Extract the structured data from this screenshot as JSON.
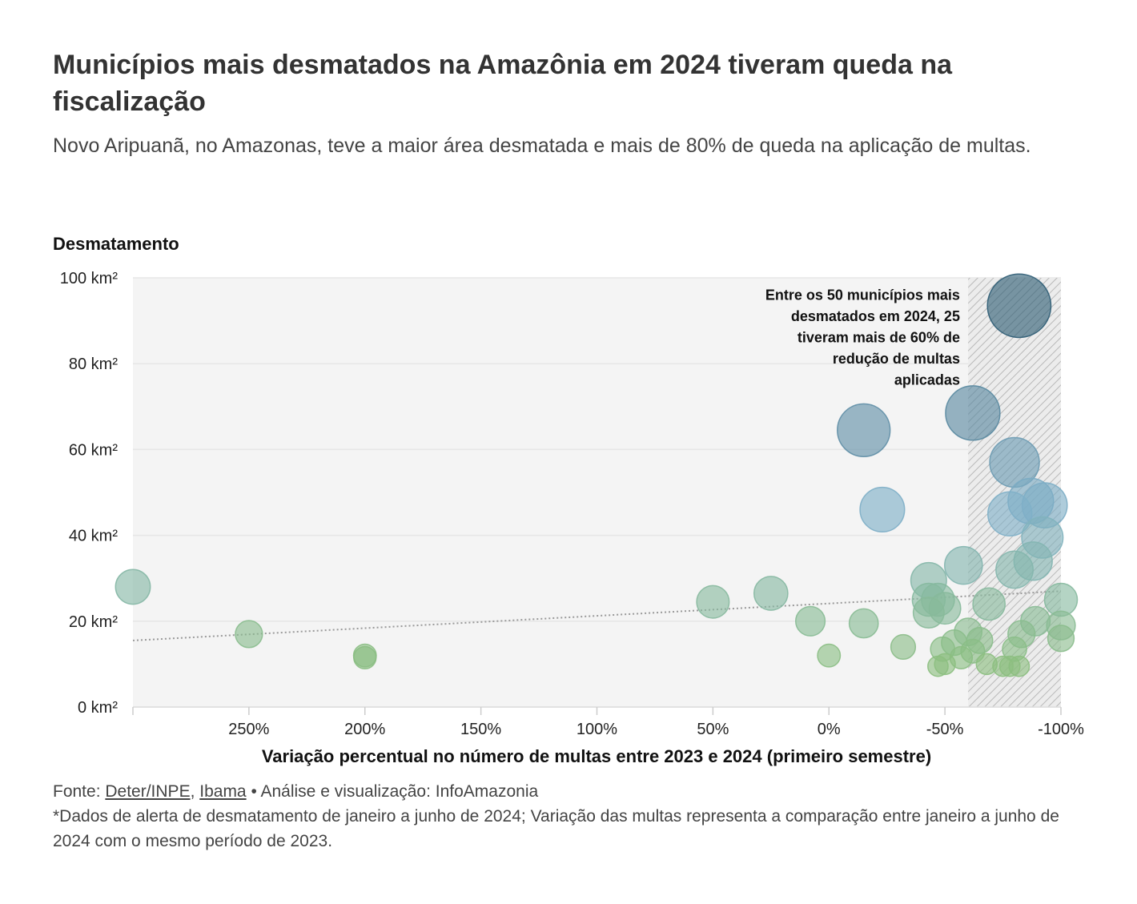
{
  "header": {
    "title": "Municípios mais desmatados na Amazônia em 2024 tiveram queda na fiscalização",
    "subtitle": "Novo Aripuanã, no Amazonas, teve a maior área desmatada e mais de 80% de queda na aplicação de multas."
  },
  "footer": {
    "source_prefix": "Fonte: ",
    "source_1": "Deter/INPE",
    "source_sep": ", ",
    "source_2": "Ibama",
    "credit": " • Análise e visualização: InfoAmazonia",
    "note": "*Dados de alerta de desmatamento de janeiro a junho de 2024; Variação das multas representa a comparação entre janeiro a junho de 2024 com o mesmo período de 2023."
  },
  "chart_data": {
    "type": "scatter",
    "y_axis_title": "Desmatamento",
    "xlabel": "Variação percentual no número de multas entre 2023 e 2024 (primeiro semestre)",
    "x_reversed": true,
    "xlim": [
      300,
      -100
    ],
    "ylim": [
      0,
      100
    ],
    "x_ticks": [
      {
        "value": 250,
        "label": "250%"
      },
      {
        "value": 200,
        "label": "200%"
      },
      {
        "value": 150,
        "label": "150%"
      },
      {
        "value": 100,
        "label": "100%"
      },
      {
        "value": 50,
        "label": "50%"
      },
      {
        "value": 0,
        "label": "0%"
      },
      {
        "value": -50,
        "label": "-50%"
      },
      {
        "value": -100,
        "label": "-100%"
      }
    ],
    "y_ticks": [
      {
        "value": 0,
        "label": "0 km²"
      },
      {
        "value": 20,
        "label": "20 km²"
      },
      {
        "value": 40,
        "label": "40 km²"
      },
      {
        "value": 60,
        "label": "60 km²"
      },
      {
        "value": 80,
        "label": "80 km²"
      },
      {
        "value": 100,
        "label": "100 km²"
      }
    ],
    "highlight_band": {
      "x_from": -60,
      "x_to": -100,
      "pattern": "diagonal-hatch"
    },
    "trend_line": {
      "x": [
        300,
        -100
      ],
      "y": [
        15.5,
        27
      ]
    },
    "annotation": {
      "lines": [
        "Entre os 50 municípios mais",
        "desmatados em 2024, 25",
        "tiveram mais de 60% de",
        "redução de multas",
        "aplicadas"
      ],
      "anchor": {
        "x": -56.5,
        "y": 96
      }
    },
    "colors": {
      "low": "#8cbf80",
      "mid": "#7fb0c8",
      "high": "#2d5a72",
      "band": "#c9c9c9",
      "plot_bg": "#f4f4f4",
      "grid": "#e6e6e6",
      "trend": "#999999"
    },
    "points": [
      {
        "x": 300,
        "y": 28
      },
      {
        "x": 250,
        "y": 17
      },
      {
        "x": 200,
        "y": 11.5
      },
      {
        "x": 200,
        "y": 12
      },
      {
        "x": 50,
        "y": 24.5
      },
      {
        "x": 25,
        "y": 26.5
      },
      {
        "x": 8,
        "y": 20
      },
      {
        "x": 0,
        "y": 12
      },
      {
        "x": -15,
        "y": 64.5
      },
      {
        "x": -15,
        "y": 19.5
      },
      {
        "x": -23,
        "y": 46
      },
      {
        "x": -32,
        "y": 14
      },
      {
        "x": -43,
        "y": 29.5
      },
      {
        "x": -43,
        "y": 25
      },
      {
        "x": -43,
        "y": 22
      },
      {
        "x": -47,
        "y": 25
      },
      {
        "x": -50,
        "y": 23
      },
      {
        "x": -47,
        "y": 9.5
      },
      {
        "x": -49,
        "y": 13.5
      },
      {
        "x": -50,
        "y": 10
      },
      {
        "x": -54,
        "y": 15
      },
      {
        "x": -57,
        "y": 11.5
      },
      {
        "x": -58,
        "y": 33
      },
      {
        "x": -60,
        "y": 17.5
      },
      {
        "x": -62,
        "y": 68.5
      },
      {
        "x": -62,
        "y": 13
      },
      {
        "x": -65,
        "y": 15.5
      },
      {
        "x": -68,
        "y": 10
      },
      {
        "x": -69,
        "y": 24
      },
      {
        "x": -75,
        "y": 9.5
      },
      {
        "x": -78,
        "y": 9.5
      },
      {
        "x": -78,
        "y": 45
      },
      {
        "x": -80,
        "y": 13.5
      },
      {
        "x": -80,
        "y": 32
      },
      {
        "x": -80,
        "y": 57
      },
      {
        "x": -82,
        "y": 93.5
      },
      {
        "x": -82,
        "y": 9.5
      },
      {
        "x": -83,
        "y": 17
      },
      {
        "x": -87,
        "y": 48
      },
      {
        "x": -88,
        "y": 34
      },
      {
        "x": -89,
        "y": 20
      },
      {
        "x": -92,
        "y": 39.5
      },
      {
        "x": -93,
        "y": 47
      },
      {
        "x": -100,
        "y": 25
      },
      {
        "x": -100,
        "y": 19
      },
      {
        "x": -100,
        "y": 16
      }
    ]
  }
}
